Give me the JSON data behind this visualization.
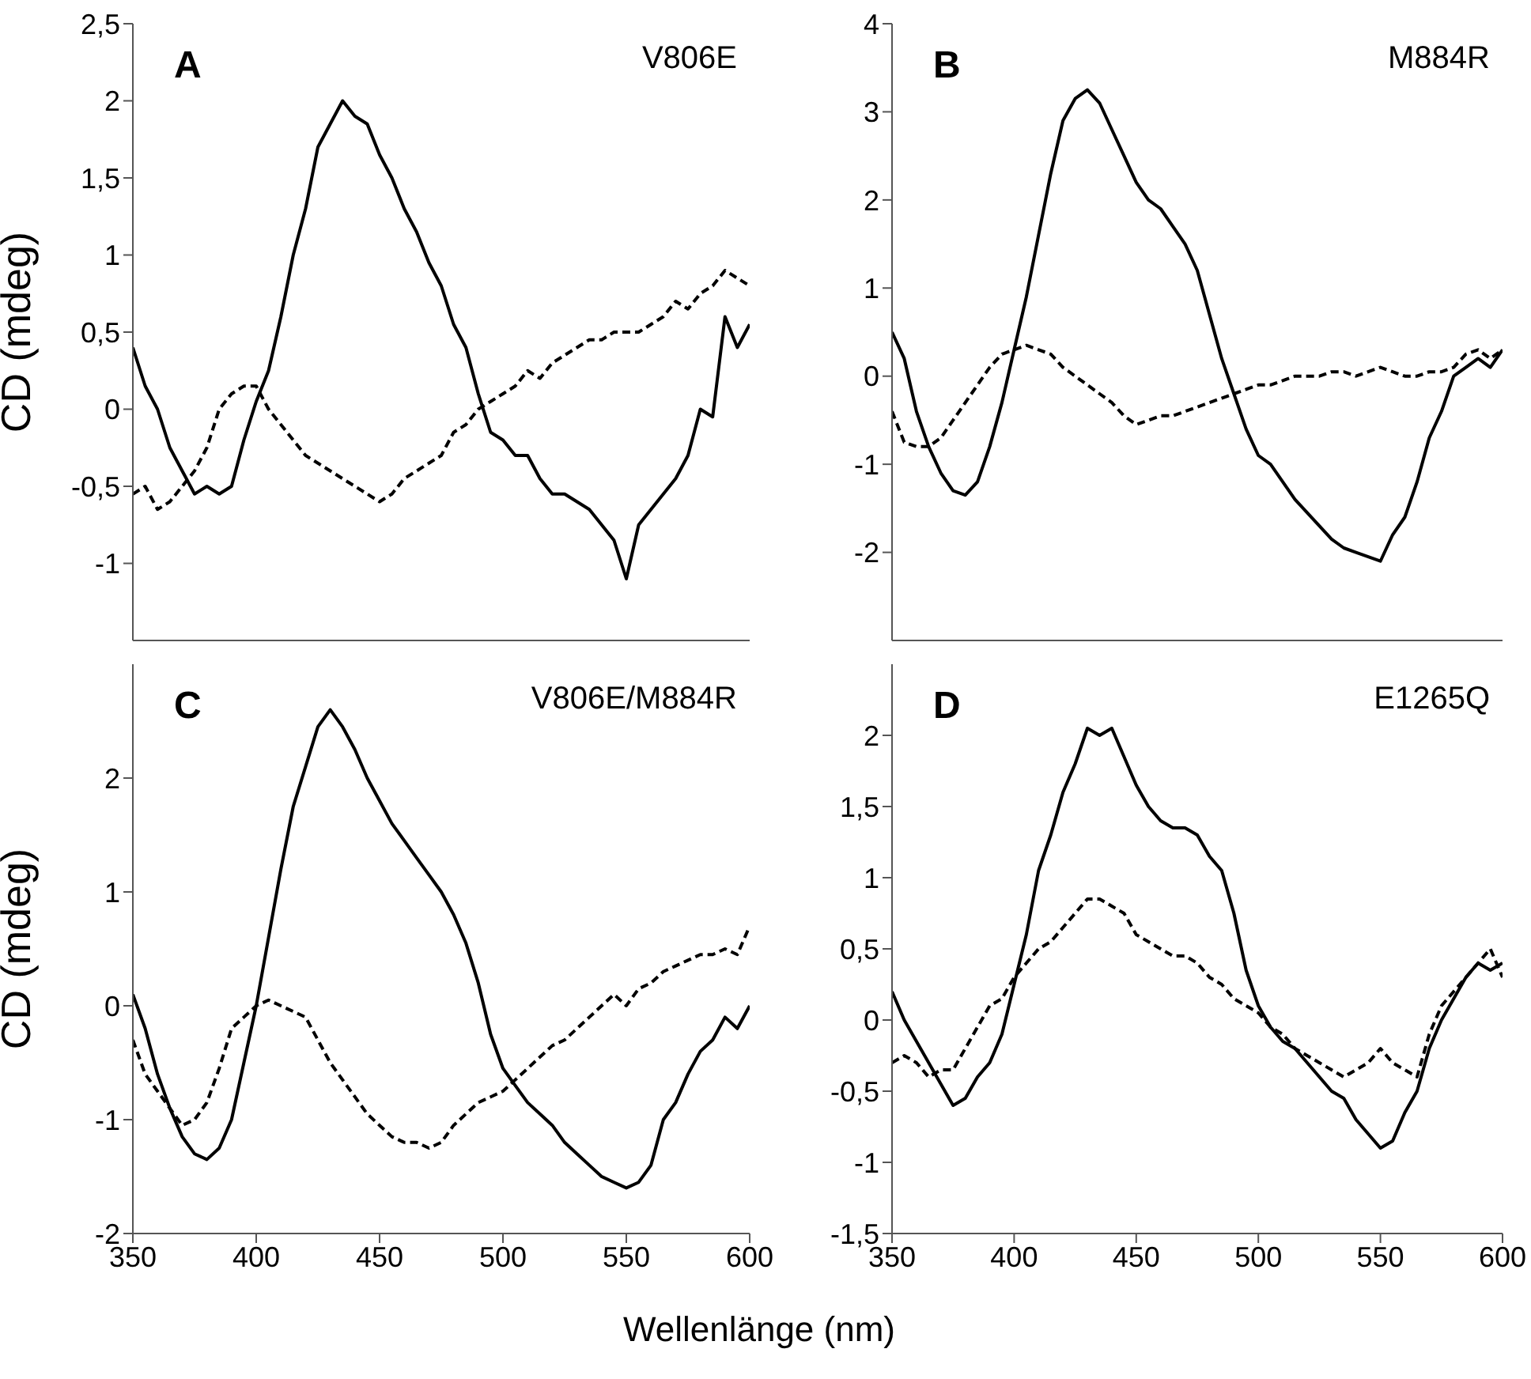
{
  "chart_data": [
    {
      "type": "line",
      "annotations": [
        "A",
        "V806E"
      ],
      "ylabel": "CD (mdeg)",
      "tick_labels": "y",
      "xlim": [
        350,
        600
      ],
      "xticks": [
        350,
        400,
        450,
        500,
        550,
        600
      ],
      "ylim": [
        -1.5,
        2.5
      ],
      "yticks": [
        -1,
        {
          "value": -0.5,
          "label": "-0,5"
        },
        0,
        {
          "value": 0.5,
          "label": "0,5"
        },
        1,
        {
          "value": 1.5,
          "label": "1,5"
        },
        2,
        {
          "value": 2.5,
          "label": "2,5"
        }
      ],
      "marker": "none",
      "x": [
        350,
        355,
        360,
        365,
        370,
        375,
        380,
        385,
        390,
        395,
        400,
        405,
        410,
        415,
        420,
        425,
        430,
        435,
        440,
        445,
        450,
        455,
        460,
        465,
        470,
        475,
        480,
        485,
        490,
        495,
        500,
        505,
        510,
        515,
        520,
        525,
        530,
        535,
        540,
        545,
        550,
        555,
        560,
        565,
        570,
        575,
        580,
        585,
        590,
        595,
        600
      ],
      "series": [
        {
          "color": "#000000",
          "line_style": "solid",
          "values": [
            0.4,
            0.15,
            0,
            -0.25,
            -0.4,
            -0.55,
            -0.5,
            -0.55,
            -0.5,
            -0.2,
            0.05,
            0.25,
            0.6,
            1.0,
            1.3,
            1.7,
            1.85,
            2.0,
            1.9,
            1.85,
            1.65,
            1.5,
            1.3,
            1.15,
            0.95,
            0.8,
            0.55,
            0.4,
            0.1,
            -0.15,
            -0.2,
            -0.3,
            -0.3,
            -0.45,
            -0.55,
            -0.55,
            -0.6,
            -0.65,
            -0.75,
            -0.85,
            -1.1,
            -0.75,
            -0.65,
            -0.55,
            -0.45,
            -0.3,
            0.0,
            -0.05,
            0.6,
            0.4,
            0.55
          ]
        },
        {
          "color": "#000000",
          "line_style": "dashed",
          "values": [
            -0.55,
            -0.5,
            -0.65,
            -0.6,
            -0.5,
            -0.4,
            -0.25,
            0.0,
            0.1,
            0.15,
            0.15,
            0.0,
            -0.1,
            -0.2,
            -0.3,
            -0.35,
            -0.4,
            -0.45,
            -0.5,
            -0.55,
            -0.6,
            -0.55,
            -0.45,
            -0.4,
            -0.35,
            -0.3,
            -0.15,
            -0.1,
            0.0,
            0.05,
            0.1,
            0.15,
            0.25,
            0.2,
            0.3,
            0.35,
            0.4,
            0.45,
            0.45,
            0.5,
            0.5,
            0.5,
            0.55,
            0.6,
            0.7,
            0.65,
            0.75,
            0.8,
            0.9,
            0.85,
            0.8
          ]
        }
      ]
    },
    {
      "type": "line",
      "annotations": [
        "B",
        "M884R"
      ],
      "tick_labels": "y",
      "xlim": [
        350,
        600
      ],
      "xticks": [
        350,
        400,
        450,
        500,
        550,
        600
      ],
      "ylim": [
        -3,
        4
      ],
      "yticks": [
        -2,
        -1,
        0,
        1,
        2,
        3,
        4
      ],
      "marker": "none",
      "x": [
        350,
        355,
        360,
        365,
        370,
        375,
        380,
        385,
        390,
        395,
        400,
        405,
        410,
        415,
        420,
        425,
        430,
        435,
        440,
        445,
        450,
        455,
        460,
        465,
        470,
        475,
        480,
        485,
        490,
        495,
        500,
        505,
        510,
        515,
        520,
        525,
        530,
        535,
        540,
        545,
        550,
        555,
        560,
        565,
        570,
        575,
        580,
        585,
        590,
        595,
        600
      ],
      "series": [
        {
          "color": "#000000",
          "line_style": "solid",
          "values": [
            0.5,
            0.2,
            -0.4,
            -0.8,
            -1.1,
            -1.3,
            -1.35,
            -1.2,
            -0.8,
            -0.3,
            0.3,
            0.9,
            1.6,
            2.3,
            2.9,
            3.15,
            3.25,
            3.1,
            2.8,
            2.5,
            2.2,
            2.0,
            1.9,
            1.7,
            1.5,
            1.2,
            0.7,
            0.2,
            -0.2,
            -0.6,
            -0.9,
            -1.0,
            -1.2,
            -1.4,
            -1.55,
            -1.7,
            -1.85,
            -1.95,
            -2.0,
            -2.05,
            -2.1,
            -1.8,
            -1.6,
            -1.2,
            -0.7,
            -0.4,
            0.0,
            0.1,
            0.2,
            0.1,
            0.3
          ]
        },
        {
          "color": "#000000",
          "line_style": "dashed",
          "values": [
            -0.4,
            -0.75,
            -0.8,
            -0.8,
            -0.7,
            -0.5,
            -0.3,
            -0.1,
            0.1,
            0.25,
            0.3,
            0.35,
            0.3,
            0.25,
            0.1,
            0.0,
            -0.1,
            -0.2,
            -0.3,
            -0.45,
            -0.55,
            -0.5,
            -0.45,
            -0.45,
            -0.4,
            -0.35,
            -0.3,
            -0.25,
            -0.2,
            -0.15,
            -0.1,
            -0.1,
            -0.05,
            0.0,
            0.0,
            0.0,
            0.05,
            0.05,
            0.0,
            0.05,
            0.1,
            0.05,
            0.0,
            0.0,
            0.05,
            0.05,
            0.1,
            0.25,
            0.3,
            0.2,
            0.3
          ]
        }
      ]
    },
    {
      "type": "line",
      "annotations": [
        "C",
        "V806E/M884R"
      ],
      "ylabel": "CD (mdeg)",
      "xlabel": "Wellenlänge (nm)",
      "xlim": [
        350,
        600
      ],
      "xticks": [
        350,
        400,
        450,
        500,
        550,
        600
      ],
      "ylim": [
        -2,
        3
      ],
      "yticks": [
        -2,
        -1,
        0,
        1,
        2
      ],
      "marker": "none",
      "x": [
        350,
        355,
        360,
        365,
        370,
        375,
        380,
        385,
        390,
        395,
        400,
        405,
        410,
        415,
        420,
        425,
        430,
        435,
        440,
        445,
        450,
        455,
        460,
        465,
        470,
        475,
        480,
        485,
        490,
        495,
        500,
        505,
        510,
        515,
        520,
        525,
        530,
        535,
        540,
        545,
        550,
        555,
        560,
        565,
        570,
        575,
        580,
        585,
        590,
        595,
        600
      ],
      "series": [
        {
          "color": "#000000",
          "line_style": "solid",
          "values": [
            0.1,
            -0.2,
            -0.6,
            -0.9,
            -1.15,
            -1.3,
            -1.35,
            -1.25,
            -1.0,
            -0.5,
            0.0,
            0.6,
            1.2,
            1.75,
            2.1,
            2.45,
            2.6,
            2.45,
            2.25,
            2.0,
            1.8,
            1.6,
            1.45,
            1.3,
            1.15,
            1.0,
            0.8,
            0.55,
            0.2,
            -0.25,
            -0.55,
            -0.7,
            -0.85,
            -0.95,
            -1.05,
            -1.2,
            -1.3,
            -1.4,
            -1.5,
            -1.55,
            -1.6,
            -1.55,
            -1.4,
            -1.0,
            -0.85,
            -0.6,
            -0.4,
            -0.3,
            -0.1,
            -0.2,
            0.0
          ]
        },
        {
          "color": "#000000",
          "line_style": "dashed",
          "values": [
            -0.3,
            -0.6,
            -0.75,
            -0.9,
            -1.05,
            -1.0,
            -0.85,
            -0.55,
            -0.2,
            -0.1,
            0.0,
            0.05,
            0.0,
            -0.05,
            -0.1,
            -0.3,
            -0.5,
            -0.65,
            -0.8,
            -0.95,
            -1.05,
            -1.15,
            -1.2,
            -1.2,
            -1.25,
            -1.2,
            -1.05,
            -0.95,
            -0.85,
            -0.8,
            -0.75,
            -0.65,
            -0.55,
            -0.45,
            -0.35,
            -0.3,
            -0.2,
            -0.1,
            0.0,
            0.1,
            0.0,
            0.15,
            0.2,
            0.3,
            0.35,
            0.4,
            0.45,
            0.45,
            0.5,
            0.45,
            0.7
          ]
        }
      ]
    },
    {
      "type": "line",
      "annotations": [
        "D",
        "E1265Q"
      ],
      "xlim": [
        350,
        600
      ],
      "xticks": [
        350,
        400,
        450,
        500,
        550,
        600
      ],
      "ylim": [
        -1.5,
        2.5
      ],
      "yticks": [
        {
          "value": -1.5,
          "label": "-1,5"
        },
        -1,
        {
          "value": -0.5,
          "label": "-0,5"
        },
        0,
        {
          "value": 0.5,
          "label": "0,5"
        },
        1,
        {
          "value": 1.5,
          "label": "1,5"
        },
        2
      ],
      "marker": "none",
      "x": [
        350,
        355,
        360,
        365,
        370,
        375,
        380,
        385,
        390,
        395,
        400,
        405,
        410,
        415,
        420,
        425,
        430,
        435,
        440,
        445,
        450,
        455,
        460,
        465,
        470,
        475,
        480,
        485,
        490,
        495,
        500,
        505,
        510,
        515,
        520,
        525,
        530,
        535,
        540,
        545,
        550,
        555,
        560,
        565,
        570,
        575,
        580,
        585,
        590,
        595,
        600
      ],
      "series": [
        {
          "color": "#000000",
          "line_style": "solid",
          "values": [
            0.2,
            0.0,
            -0.15,
            -0.3,
            -0.45,
            -0.6,
            -0.55,
            -0.4,
            -0.3,
            -0.1,
            0.25,
            0.6,
            1.05,
            1.3,
            1.6,
            1.8,
            2.05,
            2.0,
            2.05,
            1.85,
            1.65,
            1.5,
            1.4,
            1.35,
            1.35,
            1.3,
            1.15,
            1.05,
            0.75,
            0.35,
            0.1,
            -0.05,
            -0.15,
            -0.2,
            -0.3,
            -0.4,
            -0.5,
            -0.55,
            -0.7,
            -0.8,
            -0.9,
            -0.85,
            -0.65,
            -0.5,
            -0.2,
            0.0,
            0.15,
            0.3,
            0.4,
            0.35,
            0.4
          ]
        },
        {
          "color": "#000000",
          "line_style": "dashed",
          "values": [
            -0.3,
            -0.25,
            -0.3,
            -0.4,
            -0.35,
            -0.35,
            -0.2,
            -0.05,
            0.1,
            0.15,
            0.3,
            0.4,
            0.5,
            0.55,
            0.65,
            0.75,
            0.85,
            0.85,
            0.8,
            0.75,
            0.6,
            0.55,
            0.5,
            0.45,
            0.45,
            0.4,
            0.3,
            0.25,
            0.15,
            0.1,
            0.05,
            -0.05,
            -0.1,
            -0.2,
            -0.25,
            -0.3,
            -0.35,
            -0.4,
            -0.35,
            -0.3,
            -0.2,
            -0.3,
            -0.35,
            -0.4,
            -0.1,
            0.1,
            0.2,
            0.3,
            0.4,
            0.5,
            0.3
          ]
        }
      ]
    }
  ]
}
